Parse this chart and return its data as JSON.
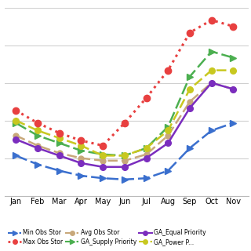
{
  "months": [
    "Jan",
    "Feb",
    "Mar",
    "Apr",
    "May",
    "Jun",
    "Jul",
    "Aug",
    "Sep",
    "Oct",
    "Nov"
  ],
  "month_indices": [
    0,
    1,
    2,
    3,
    4,
    5,
    6,
    7,
    8,
    9,
    10
  ],
  "min_obs_stor": [
    3.2,
    2.5,
    2.0,
    1.6,
    1.4,
    1.3,
    1.4,
    2.0,
    3.8,
    5.2,
    5.8
  ],
  "max_obs_stor": [
    6.8,
    5.8,
    5.0,
    4.4,
    4.0,
    5.8,
    7.8,
    10.0,
    13.0,
    14.0,
    13.5
  ],
  "avg_obs_stor": [
    4.8,
    4.0,
    3.4,
    3.0,
    2.8,
    2.8,
    3.3,
    4.8,
    7.5,
    9.0,
    8.5
  ],
  "ga_supply_priority": [
    5.8,
    4.8,
    4.2,
    3.6,
    3.3,
    3.2,
    3.8,
    5.5,
    9.5,
    11.5,
    11.0
  ],
  "ga_equal_priority": [
    4.5,
    3.8,
    3.2,
    2.6,
    2.3,
    2.3,
    3.0,
    4.2,
    7.0,
    9.0,
    8.5
  ],
  "ga_power_priority": [
    6.0,
    5.2,
    4.6,
    4.0,
    3.2,
    3.2,
    3.8,
    5.2,
    8.5,
    10.0,
    10.0
  ],
  "ylim": [
    0,
    15
  ],
  "background_color": "#ffffff",
  "grid_color": "#d0d0d0"
}
